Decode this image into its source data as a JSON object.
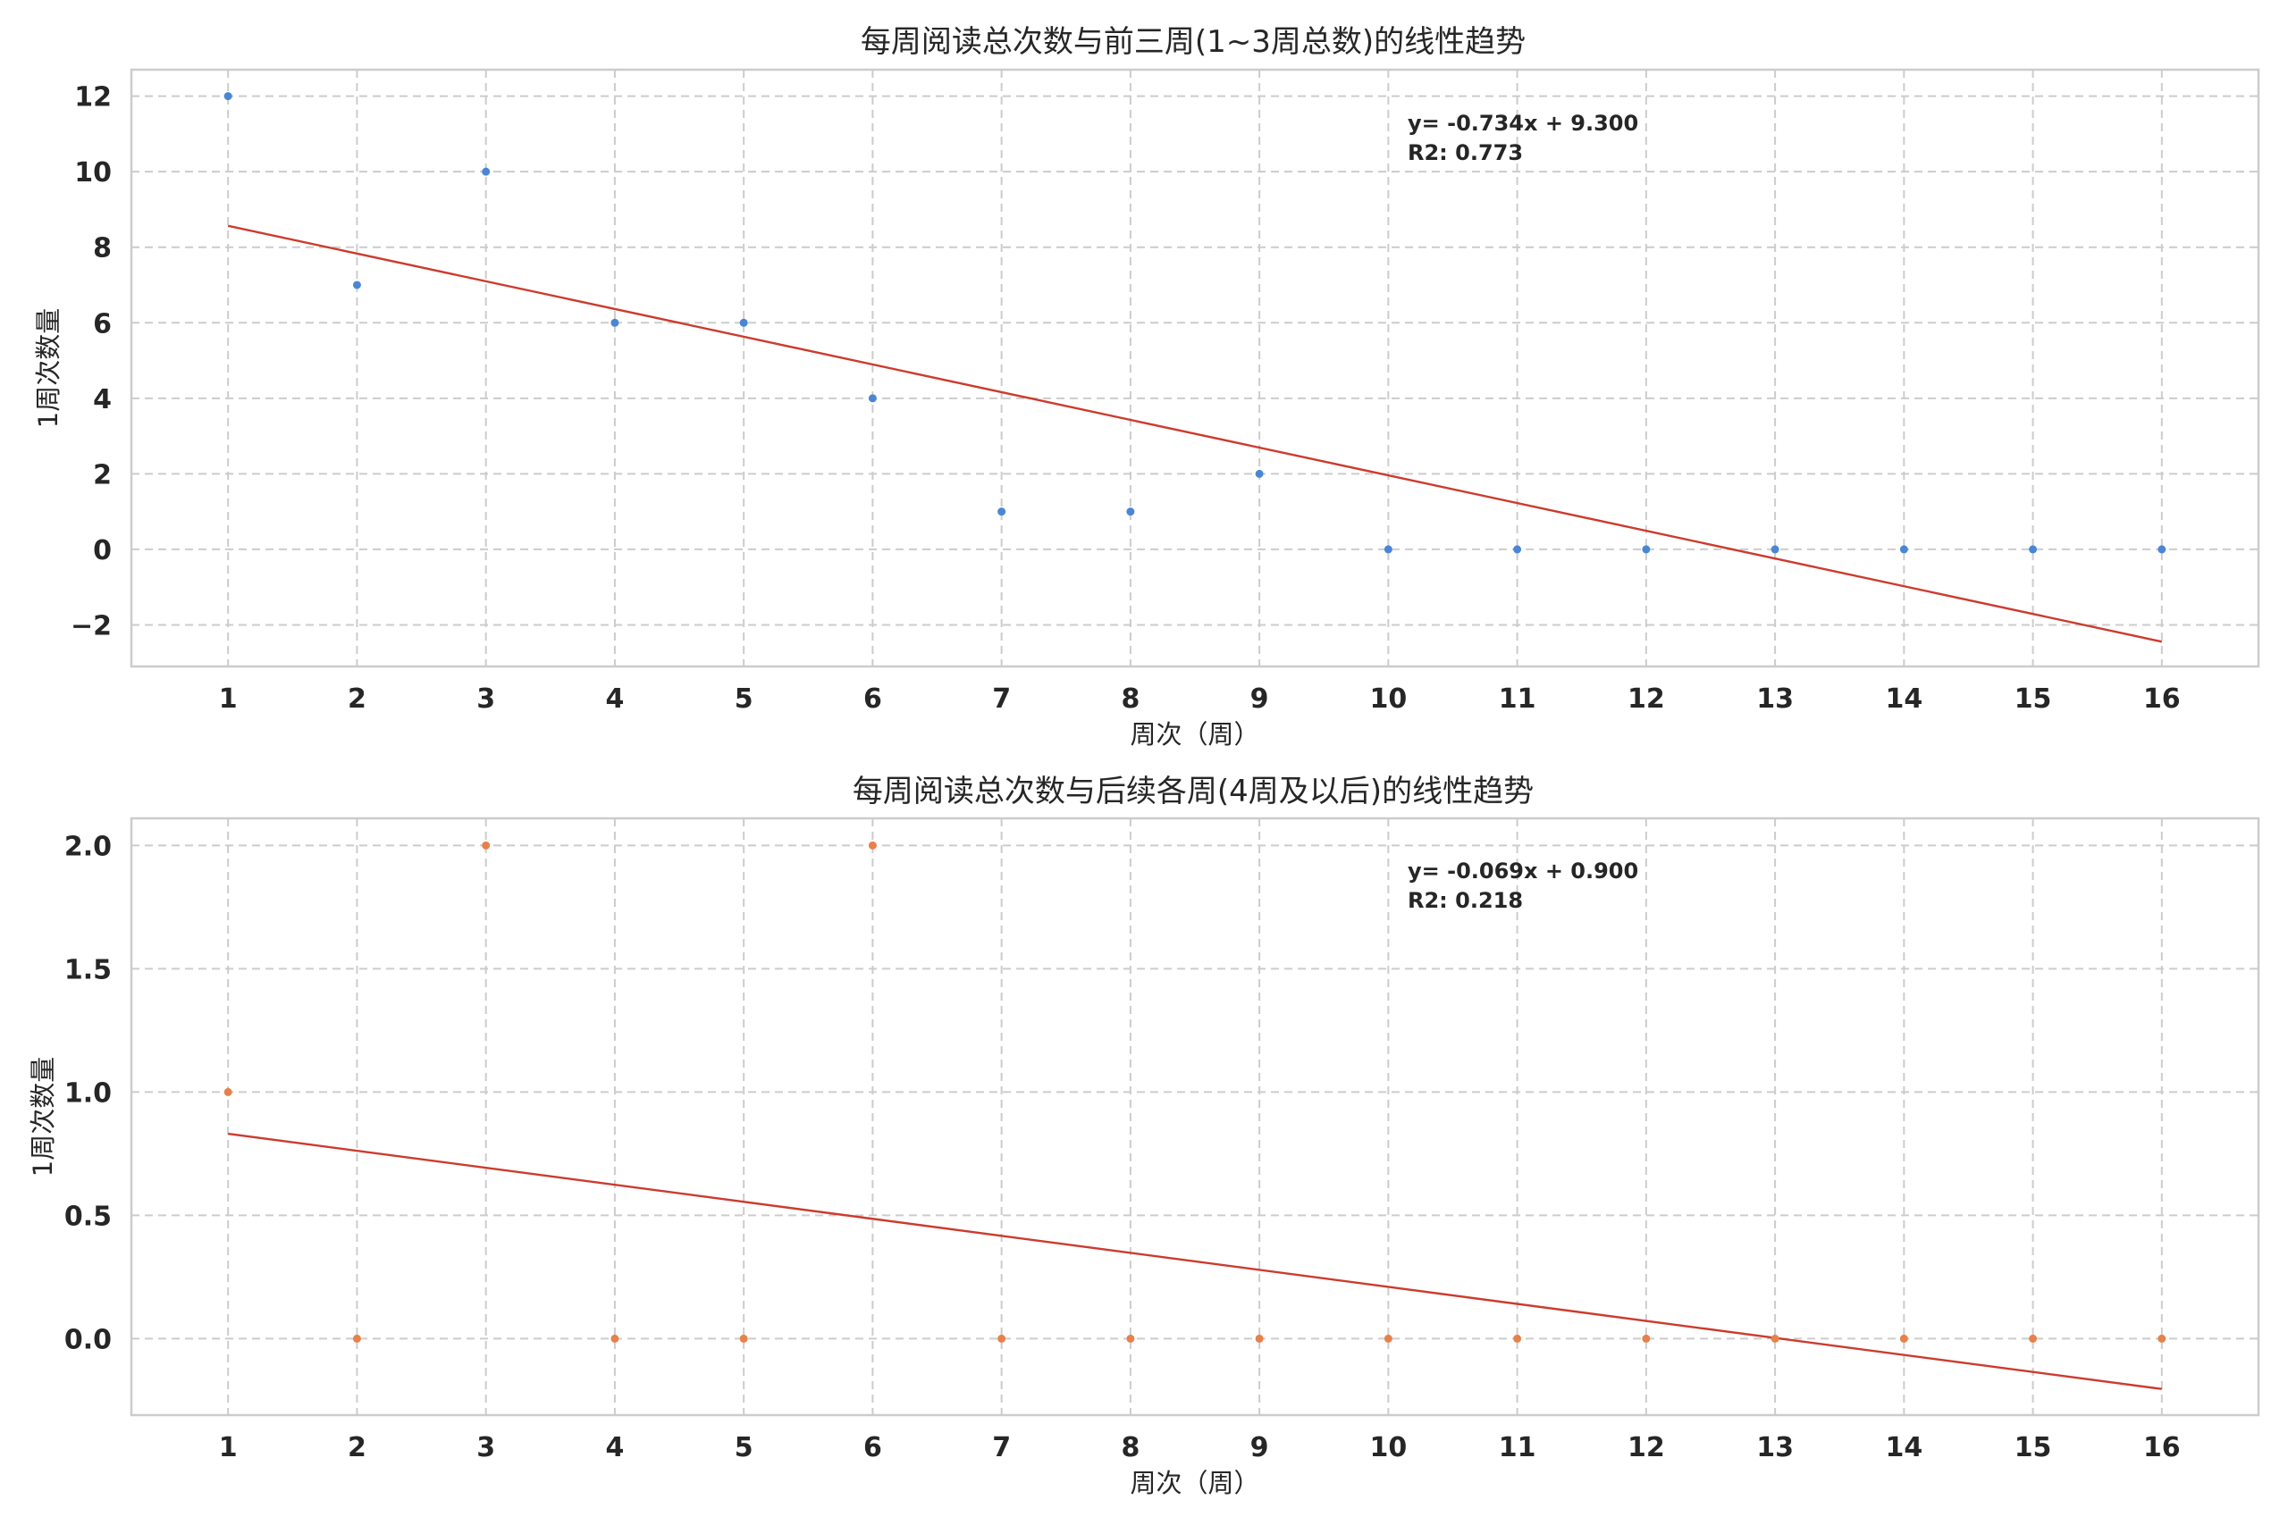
{
  "chart_data": [
    {
      "type": "scatter",
      "title": "每周阅读总次数与前三周(1~3周总数)的线性趋势",
      "xlabel": "周次（周）",
      "ylabel": "1周次数量",
      "xlim": [
        0.25,
        16.75
      ],
      "ylim": [
        -3.1,
        12.7
      ],
      "xticks": [
        1,
        2,
        3,
        4,
        5,
        6,
        7,
        8,
        9,
        10,
        11,
        12,
        13,
        14,
        15,
        16
      ],
      "yticks": [
        -2,
        0,
        2,
        4,
        6,
        8,
        10,
        12
      ],
      "ytick_labels": [
        "−2",
        "0",
        "2",
        "4",
        "6",
        "8",
        "10",
        "12"
      ],
      "grid": true,
      "point_color": "#4a86d4",
      "x": [
        1,
        2,
        3,
        4,
        5,
        6,
        7,
        8,
        9,
        10,
        11,
        12,
        13,
        14,
        15,
        16
      ],
      "y": [
        12,
        7,
        10,
        6,
        6,
        4,
        1,
        1,
        2,
        0,
        0,
        0,
        0,
        0,
        0,
        0
      ],
      "fit": {
        "slope": -0.734,
        "intercept": 9.3,
        "color": "#cc3b2e",
        "equation_text": "y= -0.734x + 9.300",
        "r2_text": "R2: 0.773"
      }
    },
    {
      "type": "scatter",
      "title": "每周阅读总次数与后续各周(4周及以后)的线性趋势",
      "xlabel": "周次（周）",
      "ylabel": "1周次数量",
      "xlim": [
        0.25,
        16.75
      ],
      "ylim": [
        -0.31,
        2.11
      ],
      "xticks": [
        1,
        2,
        3,
        4,
        5,
        6,
        7,
        8,
        9,
        10,
        11,
        12,
        13,
        14,
        15,
        16
      ],
      "yticks": [
        0.0,
        0.5,
        1.0,
        1.5,
        2.0
      ],
      "ytick_labels": [
        "0.0",
        "0.5",
        "1.0",
        "1.5",
        "2.0"
      ],
      "grid": true,
      "point_color": "#e8804a",
      "x": [
        1,
        2,
        3,
        4,
        5,
        6,
        7,
        8,
        9,
        10,
        11,
        12,
        13,
        14,
        15,
        16
      ],
      "y": [
        1,
        0,
        2,
        0,
        0,
        2,
        0,
        0,
        0,
        0,
        0,
        0,
        0,
        0,
        0,
        0
      ],
      "fit": {
        "slope": -0.069,
        "intercept": 0.9,
        "color": "#cc3b2e",
        "equation_text": "y= -0.069x + 0.900",
        "r2_text": "R2: 0.218"
      }
    }
  ]
}
